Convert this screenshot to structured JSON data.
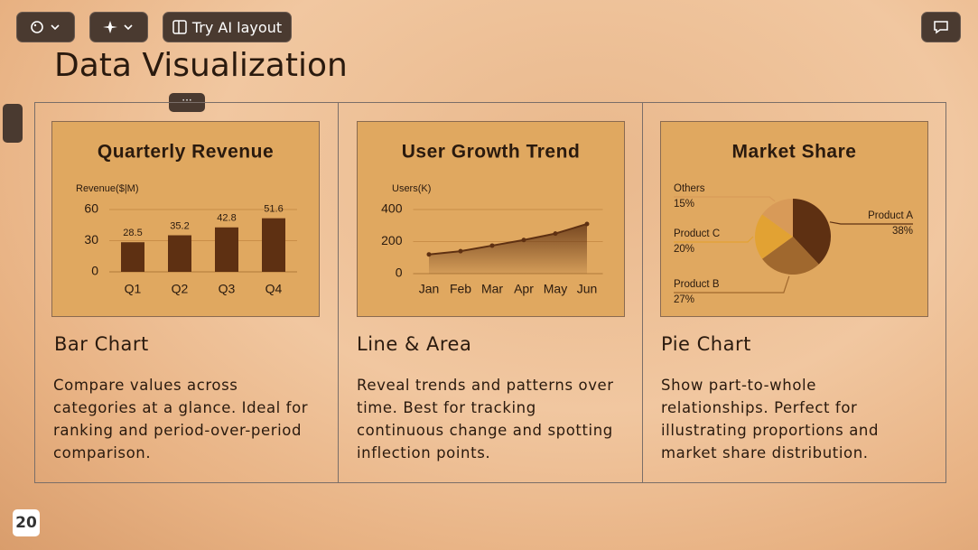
{
  "toolbar": {
    "ai_button": "Try AI layout"
  },
  "title": "Data Visualization",
  "chart_data": [
    {
      "type": "bar",
      "title": "Quarterly Revenue",
      "y_label": "Revenue($|M)",
      "categories": [
        "Q1",
        "Q2",
        "Q3",
        "Q4"
      ],
      "values": [
        28.5,
        35.2,
        42.8,
        51.6
      ],
      "color": "#5e3012",
      "ylim": [
        0,
        60
      ],
      "yticks": [
        0,
        30,
        60
      ],
      "grid": true
    },
    {
      "type": "area",
      "title": "User Growth Trend",
      "y_label": "Users(K)",
      "categories": [
        "Jan",
        "Feb",
        "Mar",
        "Apr",
        "May",
        "Jun"
      ],
      "values": [
        120,
        140,
        175,
        210,
        250,
        310
      ],
      "color": "#5e3012",
      "ylim": [
        0,
        400
      ],
      "yticks": [
        0,
        200,
        400
      ],
      "grid": true
    },
    {
      "type": "pie",
      "title": "Market Share",
      "categories": [
        "Product A",
        "Product B",
        "Product C",
        "Others"
      ],
      "values": [
        38,
        27,
        20,
        15
      ],
      "value_labels": [
        "38%",
        "27%",
        "20%",
        "15%"
      ],
      "colors": [
        "#5e3012",
        "#a0682e",
        "#e2a233",
        "#d89a58"
      ]
    }
  ],
  "cards": [
    {
      "heading": "Bar Chart",
      "description": "Compare values across categories at a glance. Ideal for ranking and period-over-period comparison."
    },
    {
      "heading": "Line & Area",
      "description": "Reveal trends and patterns over time. Best for tracking continuous change and spotting inflection points."
    },
    {
      "heading": "Pie Chart",
      "description": "Show part-to-whole relationships. Perfect for illustrating proportions and market share distribution."
    }
  ],
  "page_number": 20
}
